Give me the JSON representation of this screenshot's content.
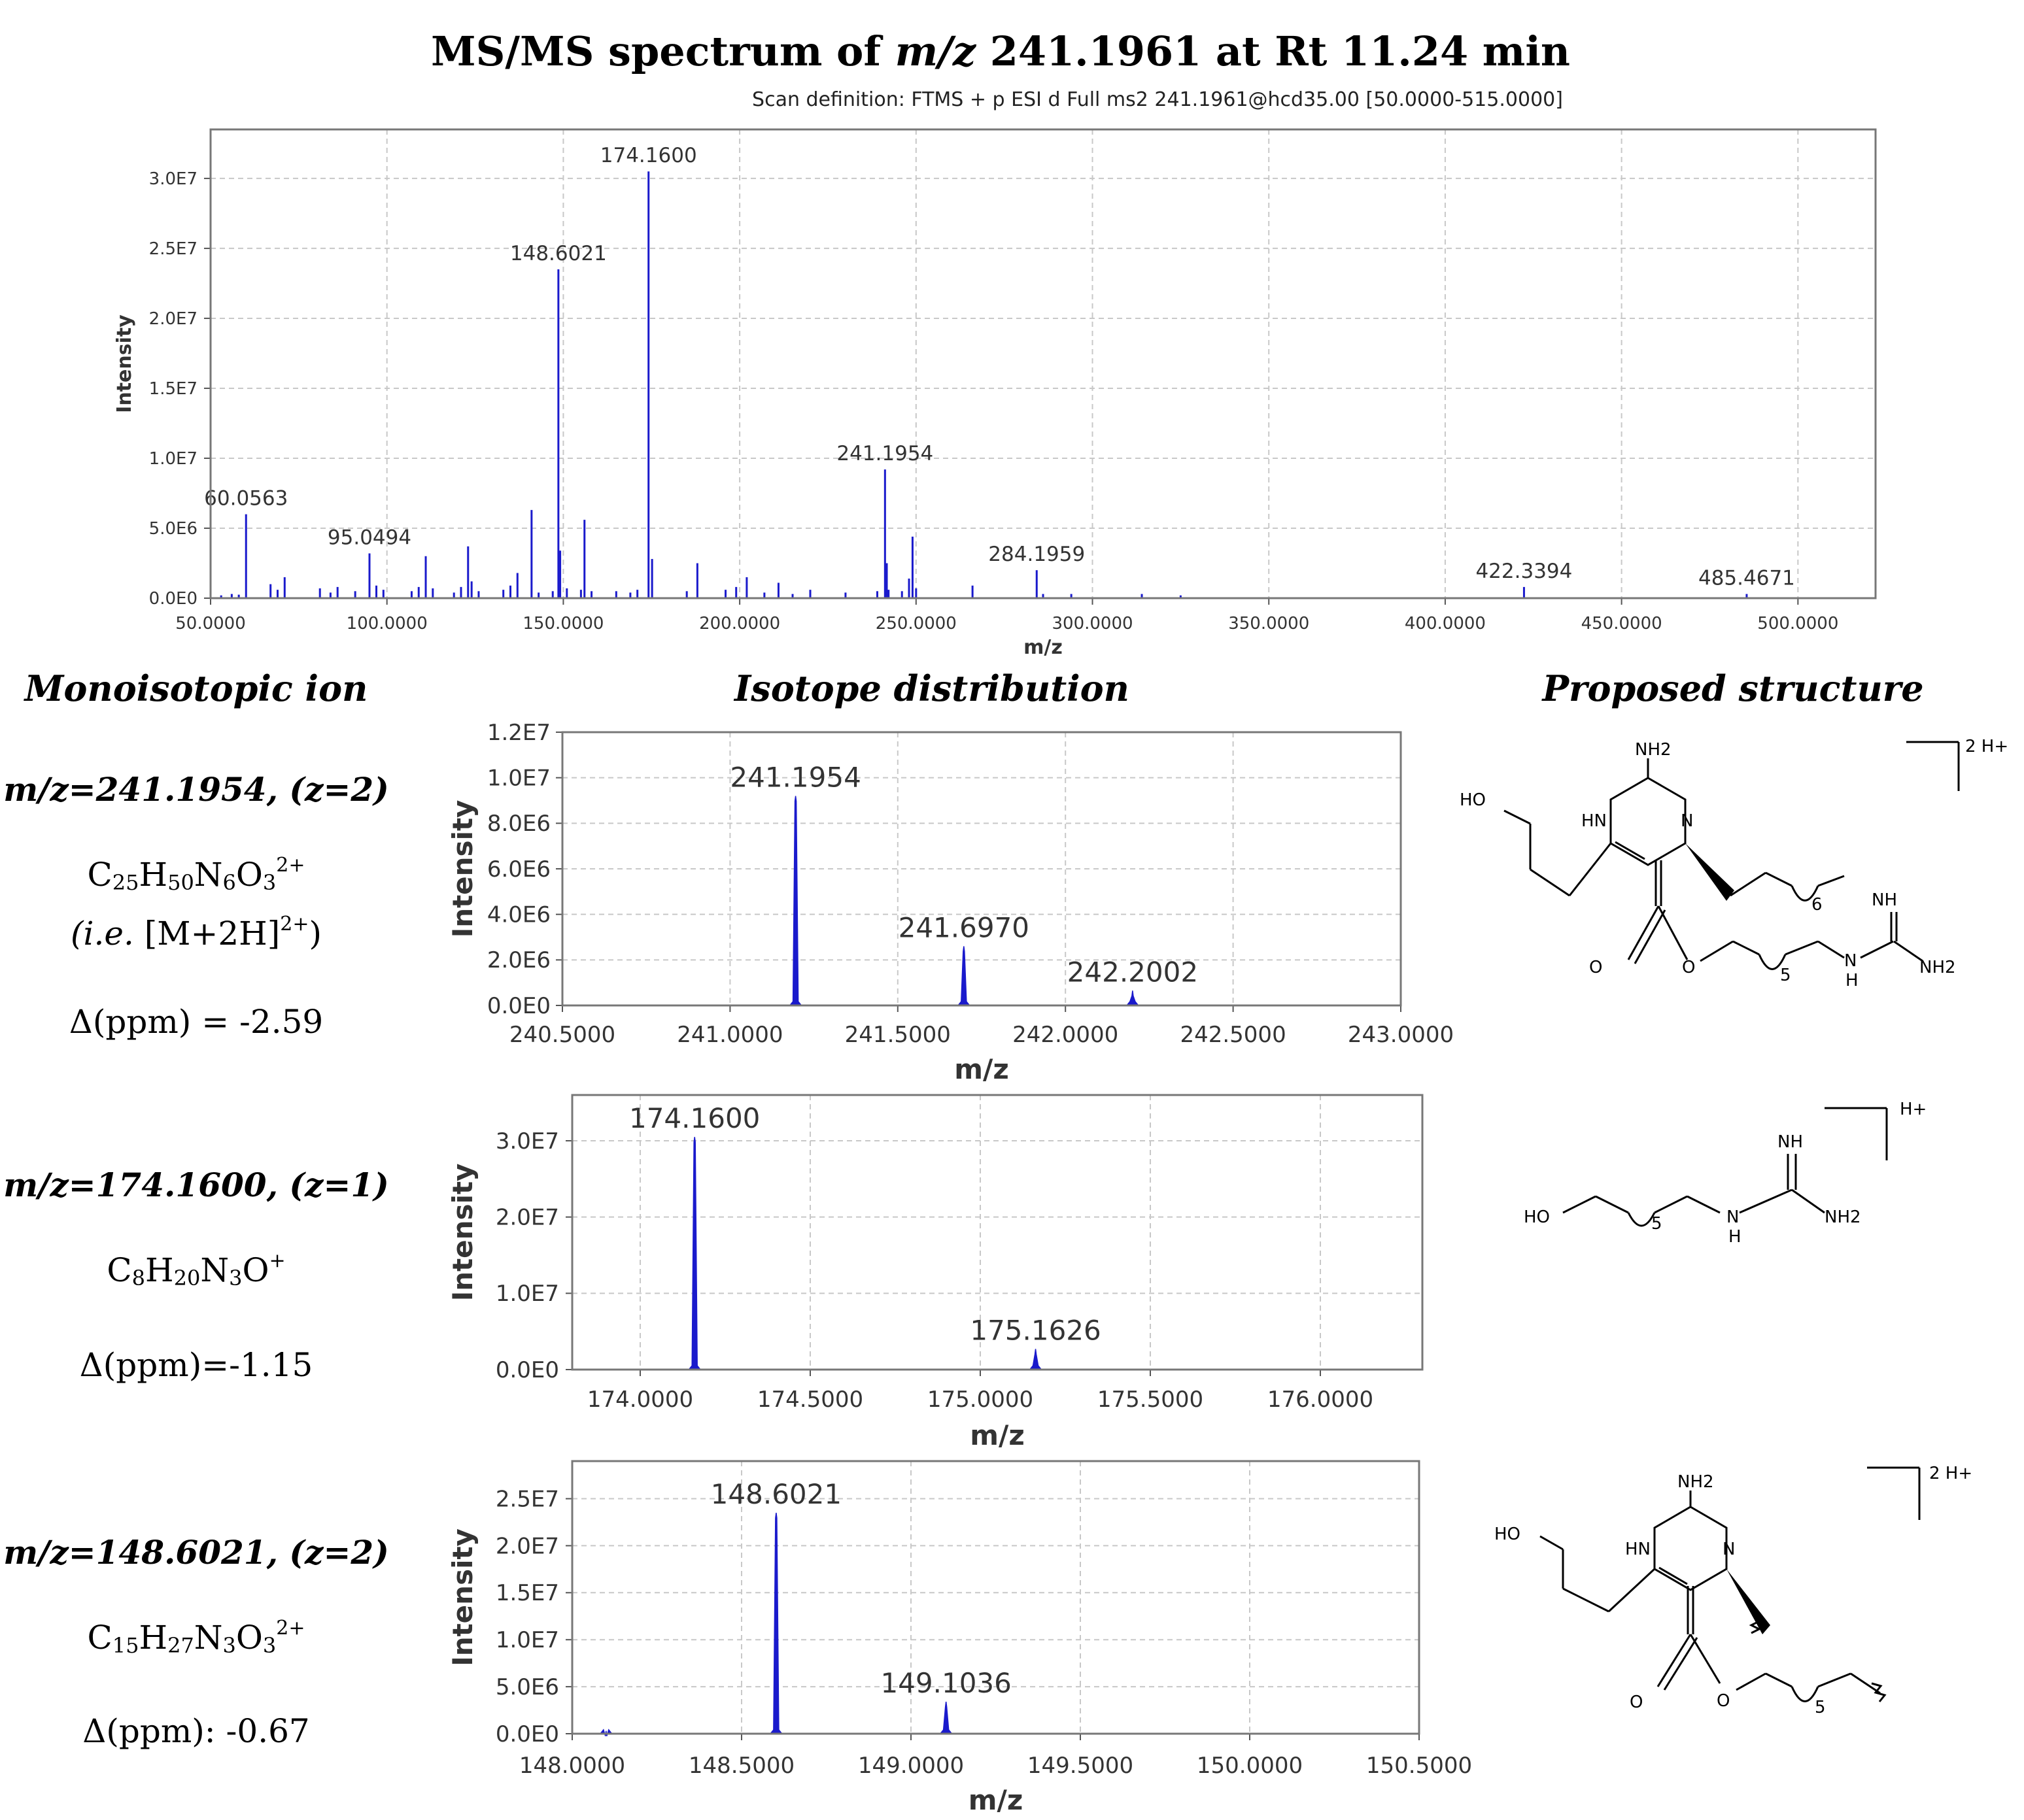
{
  "title": {
    "prefix": "MS/MS spectrum of ",
    "mz_italic": "m/z",
    "suffix": " 241.1961 at Rt 11.24 min"
  },
  "scan_definition": "Scan definition: FTMS + p ESI d Full ms2 241.1961@hcd35.00 [50.0000-515.0000]",
  "section_headers": {
    "left": "Monoisotopic ion",
    "middle": "Isotope distribution",
    "right": "Proposed structure"
  },
  "ions": [
    {
      "mz_line": "m/z=241.1954, (z=2)",
      "formula_parts": [
        [
          "C",
          "25"
        ],
        [
          "H",
          "50"
        ],
        [
          "N",
          "6"
        ],
        [
          "O",
          "3"
        ]
      ],
      "charge": "2+",
      "note_prefix": "(i.e.",
      "note_main": " [M+2H]",
      "note_sup": "2+",
      "note_suffix": ")",
      "ppm": "Δ(ppm) = -2.59"
    },
    {
      "mz_line": "m/z=174.1600, (z=1)",
      "formula_parts": [
        [
          "C",
          "8"
        ],
        [
          "H",
          "20"
        ],
        [
          "N",
          "3"
        ],
        [
          "O",
          ""
        ]
      ],
      "charge": "+",
      "ppm": "Δ(ppm)=-1.15"
    },
    {
      "mz_line": "m/z=148.6021, (z=2)",
      "formula_parts": [
        [
          "C",
          "15"
        ],
        [
          "H",
          "27"
        ],
        [
          "N",
          "3"
        ],
        [
          "O",
          "3"
        ]
      ],
      "charge": "2+",
      "ppm": "Δ(ppm): -0.67"
    }
  ],
  "structure_labels": {
    "s1": {
      "nh2_top": "NH2",
      "ho": "HO",
      "hn": "HN",
      "n": "N",
      "nh": "NH",
      "nh2_right": "NH2",
      "o1": "O",
      "o2": "O",
      "h": "H",
      "n2": "N",
      "sub6": "6",
      "sub5": "5",
      "charge": "2 H+"
    },
    "s2": {
      "ho": "HO",
      "nh": "NH",
      "nh2": "NH2",
      "n": "N",
      "h": "H",
      "sub5": "5",
      "charge": "H+"
    },
    "s3": {
      "nh2_top": "NH2",
      "ho": "HO",
      "hn": "HN",
      "n": "N",
      "o1": "O",
      "o2": "O",
      "sub5": "5",
      "charge": "2 H+"
    }
  },
  "chart_data": [
    {
      "type": "bar",
      "name": "ms2-spectrum",
      "xlabel": "m/z",
      "ylabel": "Intensity",
      "xlim": [
        50,
        522
      ],
      "ylim": [
        0,
        33500000
      ],
      "xticks": [
        50,
        100,
        150,
        200,
        250,
        300,
        350,
        400,
        450,
        500
      ],
      "xtick_labels": [
        "50.0000",
        "100.0000",
        "150.0000",
        "200.0000",
        "250.0000",
        "300.0000",
        "350.0000",
        "400.0000",
        "450.0000",
        "500.0000"
      ],
      "yticks": [
        0,
        5000000,
        10000000,
        15000000,
        20000000,
        25000000,
        30000000
      ],
      "ytick_labels": [
        "0.0E0",
        "5.0E6",
        "1.0E7",
        "1.5E7",
        "2.0E7",
        "2.5E7",
        "3.0E7"
      ],
      "grid": true,
      "peaks": [
        {
          "x": 53.0,
          "y": 200000
        },
        {
          "x": 56.0,
          "y": 300000
        },
        {
          "x": 58.0,
          "y": 250000
        },
        {
          "x": 60.0563,
          "y": 6000000,
          "label": "60.0563"
        },
        {
          "x": 67.0,
          "y": 1000000
        },
        {
          "x": 69.0,
          "y": 600000
        },
        {
          "x": 71.0,
          "y": 1500000
        },
        {
          "x": 81.0,
          "y": 700000
        },
        {
          "x": 84.0,
          "y": 400000
        },
        {
          "x": 86.0,
          "y": 800000
        },
        {
          "x": 91.0,
          "y": 500000
        },
        {
          "x": 95.0494,
          "y": 3200000,
          "label": "95.0494"
        },
        {
          "x": 97.0,
          "y": 900000
        },
        {
          "x": 99.0,
          "y": 600000
        },
        {
          "x": 107.0,
          "y": 500000
        },
        {
          "x": 109.0,
          "y": 800000
        },
        {
          "x": 111.0,
          "y": 3000000
        },
        {
          "x": 113.0,
          "y": 700000
        },
        {
          "x": 119.0,
          "y": 400000
        },
        {
          "x": 121.0,
          "y": 800000
        },
        {
          "x": 123.0,
          "y": 3700000
        },
        {
          "x": 124.0,
          "y": 1200000
        },
        {
          "x": 126.0,
          "y": 500000
        },
        {
          "x": 133.0,
          "y": 600000
        },
        {
          "x": 135.0,
          "y": 900000
        },
        {
          "x": 137.0,
          "y": 1800000
        },
        {
          "x": 141.0,
          "y": 6300000
        },
        {
          "x": 143.0,
          "y": 400000
        },
        {
          "x": 147.0,
          "y": 500000
        },
        {
          "x": 148.6021,
          "y": 23500000,
          "label": "148.6021"
        },
        {
          "x": 149.1036,
          "y": 3400000
        },
        {
          "x": 151.0,
          "y": 700000
        },
        {
          "x": 155.0,
          "y": 600000
        },
        {
          "x": 156.0,
          "y": 5600000
        },
        {
          "x": 158.0,
          "y": 500000
        },
        {
          "x": 165.0,
          "y": 500000
        },
        {
          "x": 169.0,
          "y": 400000
        },
        {
          "x": 171.0,
          "y": 600000
        },
        {
          "x": 174.16,
          "y": 30500000,
          "label": "174.1600"
        },
        {
          "x": 175.1626,
          "y": 2800000
        },
        {
          "x": 185.0,
          "y": 500000
        },
        {
          "x": 188.0,
          "y": 2500000
        },
        {
          "x": 196.0,
          "y": 600000
        },
        {
          "x": 199.0,
          "y": 800000
        },
        {
          "x": 202.0,
          "y": 1500000
        },
        {
          "x": 207.0,
          "y": 400000
        },
        {
          "x": 211.0,
          "y": 1100000
        },
        {
          "x": 215.0,
          "y": 300000
        },
        {
          "x": 220.0,
          "y": 600000
        },
        {
          "x": 230.0,
          "y": 400000
        },
        {
          "x": 239.0,
          "y": 500000
        },
        {
          "x": 241.1954,
          "y": 9200000,
          "label": "241.1954"
        },
        {
          "x": 241.697,
          "y": 2500000
        },
        {
          "x": 242.2002,
          "y": 600000
        },
        {
          "x": 246.0,
          "y": 500000
        },
        {
          "x": 248.0,
          "y": 1400000
        },
        {
          "x": 249.0,
          "y": 4400000
        },
        {
          "x": 250.0,
          "y": 700000
        },
        {
          "x": 266.0,
          "y": 900000
        },
        {
          "x": 284.1959,
          "y": 2000000,
          "label": "284.1959"
        },
        {
          "x": 286.0,
          "y": 300000
        },
        {
          "x": 294.0,
          "y": 300000
        },
        {
          "x": 314.0,
          "y": 300000
        },
        {
          "x": 325.0,
          "y": 200000
        },
        {
          "x": 422.3394,
          "y": 800000,
          "label": "422.3394"
        },
        {
          "x": 485.4671,
          "y": 300000,
          "label": "485.4671"
        }
      ]
    },
    {
      "type": "line",
      "name": "isotope-241",
      "xlabel": "m/z",
      "ylabel": "Intensity",
      "xlim": [
        240.5,
        243.0
      ],
      "ylim": [
        0,
        12000000
      ],
      "xticks": [
        240.5,
        241.0,
        241.5,
        242.0,
        242.5,
        243.0
      ],
      "xtick_labels": [
        "240.5000",
        "241.0000",
        "241.5000",
        "242.0000",
        "242.5000",
        "243.0000"
      ],
      "yticks": [
        0,
        2000000,
        4000000,
        6000000,
        8000000,
        10000000,
        12000000
      ],
      "ytick_labels": [
        "0.0E0",
        "2.0E6",
        "4.0E6",
        "6.0E6",
        "8.0E6",
        "1.0E7",
        "1.2E7"
      ],
      "grid": true,
      "peaks": [
        {
          "x": 241.1954,
          "y": 9200000,
          "label": "241.1954"
        },
        {
          "x": 241.697,
          "y": 2600000,
          "label": "241.6970"
        },
        {
          "x": 242.2002,
          "y": 650000,
          "label": "242.2002"
        }
      ]
    },
    {
      "type": "line",
      "name": "isotope-174",
      "xlabel": "m/z",
      "ylabel": "Intensity",
      "xlim": [
        173.8,
        176.3
      ],
      "ylim": [
        0,
        36000000
      ],
      "xticks": [
        174.0,
        174.5,
        175.0,
        175.5,
        176.0
      ],
      "xtick_labels": [
        "174.0000",
        "174.5000",
        "175.0000",
        "175.5000",
        "176.0000"
      ],
      "yticks": [
        0,
        10000000,
        20000000,
        30000000
      ],
      "ytick_labels": [
        "0.0E0",
        "1.0E7",
        "2.0E7",
        "3.0E7"
      ],
      "grid": true,
      "peaks": [
        {
          "x": 174.16,
          "y": 30500000,
          "label": "174.1600"
        },
        {
          "x": 175.1626,
          "y": 2700000,
          "label": "175.1626"
        }
      ]
    },
    {
      "type": "line",
      "name": "isotope-148",
      "xlabel": "m/z",
      "ylabel": "Intensity",
      "xlim": [
        148.0,
        150.5
      ],
      "ylim": [
        0,
        29000000
      ],
      "xticks": [
        148.0,
        148.5,
        149.0,
        149.5,
        150.0,
        150.5
      ],
      "xtick_labels": [
        "148.0000",
        "148.5000",
        "149.0000",
        "149.5000",
        "150.0000",
        "150.5000"
      ],
      "yticks": [
        0,
        5000000,
        10000000,
        15000000,
        20000000,
        25000000
      ],
      "ytick_labels": [
        "0.0E0",
        "5.0E6",
        "1.0E7",
        "1.5E7",
        "2.0E7",
        "2.5E7"
      ],
      "grid": true,
      "peaks": [
        {
          "x": 148.1,
          "y": 300000
        },
        {
          "x": 148.6021,
          "y": 23500000,
          "label": "148.6021"
        },
        {
          "x": 149.1036,
          "y": 3400000,
          "label": "149.1036"
        }
      ]
    }
  ]
}
